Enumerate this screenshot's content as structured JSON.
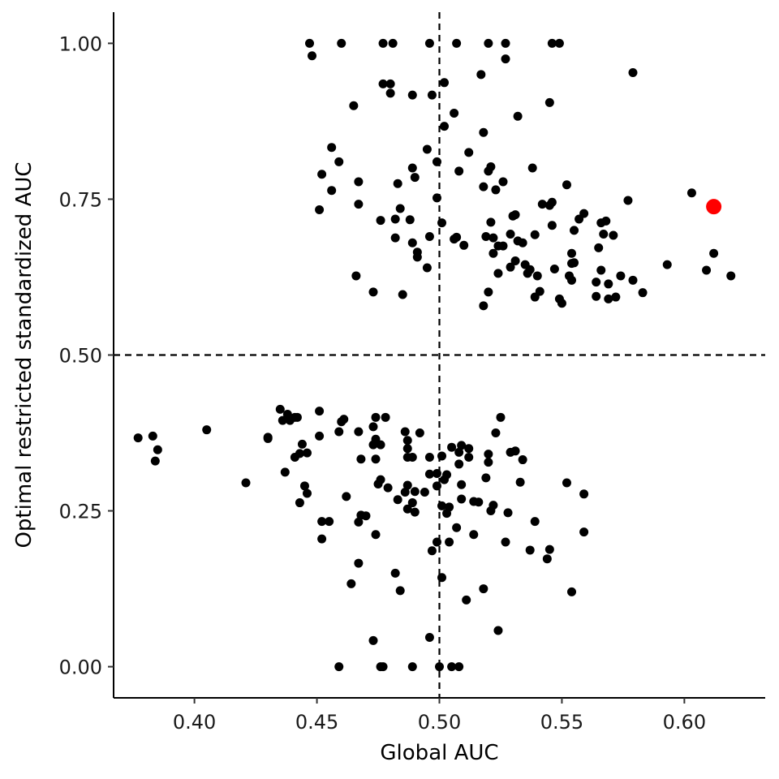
{
  "chart_data": {
    "type": "scatter",
    "xlabel": "Global AUC",
    "ylabel": "Optimal restricted standardized AUC",
    "xlim": [
      0.367,
      0.633
    ],
    "ylim": [
      -0.05,
      1.05
    ],
    "x_ticks": [
      0.4,
      0.45,
      0.5,
      0.55,
      0.6
    ],
    "x_tick_labels": [
      "0.40",
      "0.45",
      "0.50",
      "0.55",
      "0.60"
    ],
    "y_ticks": [
      0.0,
      0.25,
      0.5,
      0.75,
      1.0
    ],
    "y_tick_labels": [
      "0.00",
      "0.25",
      "0.50",
      "0.75",
      "1.00"
    ],
    "reference_lines": [
      {
        "orientation": "horizontal",
        "value": 0.5,
        "style": "dashed"
      },
      {
        "orientation": "vertical",
        "value": 0.5,
        "style": "dashed"
      }
    ],
    "grid": false,
    "legend": "none",
    "colors": {
      "points": "#000000",
      "highlight": "#ff0000",
      "reference": "#000000"
    },
    "highlight": {
      "x": 0.612,
      "y": 0.738
    },
    "points": [
      [
        0.447,
        1.0
      ],
      [
        0.46,
        1.0
      ],
      [
        0.477,
        1.0
      ],
      [
        0.481,
        1.0
      ],
      [
        0.496,
        1.0
      ],
      [
        0.507,
        1.0
      ],
      [
        0.52,
        1.0
      ],
      [
        0.527,
        1.0
      ],
      [
        0.546,
        1.0
      ],
      [
        0.549,
        1.0
      ],
      [
        0.448,
        0.98
      ],
      [
        0.527,
        0.975
      ],
      [
        0.579,
        0.953
      ],
      [
        0.517,
        0.95
      ],
      [
        0.477,
        0.935
      ],
      [
        0.48,
        0.935
      ],
      [
        0.502,
        0.937
      ],
      [
        0.48,
        0.92
      ],
      [
        0.489,
        0.917
      ],
      [
        0.497,
        0.917
      ],
      [
        0.545,
        0.905
      ],
      [
        0.465,
        0.9
      ],
      [
        0.532,
        0.883
      ],
      [
        0.506,
        0.888
      ],
      [
        0.502,
        0.867
      ],
      [
        0.518,
        0.857
      ],
      [
        0.456,
        0.833
      ],
      [
        0.495,
        0.83
      ],
      [
        0.512,
        0.825
      ],
      [
        0.459,
        0.81
      ],
      [
        0.499,
        0.81
      ],
      [
        0.452,
        0.79
      ],
      [
        0.489,
        0.8
      ],
      [
        0.508,
        0.795
      ],
      [
        0.52,
        0.795
      ],
      [
        0.521,
        0.802
      ],
      [
        0.538,
        0.8
      ],
      [
        0.467,
        0.778
      ],
      [
        0.49,
        0.785
      ],
      [
        0.483,
        0.775
      ],
      [
        0.518,
        0.77
      ],
      [
        0.526,
        0.778
      ],
      [
        0.523,
        0.765
      ],
      [
        0.456,
        0.764
      ],
      [
        0.552,
        0.773
      ],
      [
        0.577,
        0.748
      ],
      [
        0.603,
        0.76
      ],
      [
        0.499,
        0.752
      ],
      [
        0.467,
        0.742
      ],
      [
        0.484,
        0.735
      ],
      [
        0.451,
        0.733
      ],
      [
        0.545,
        0.74
      ],
      [
        0.546,
        0.745
      ],
      [
        0.542,
        0.742
      ],
      [
        0.53,
        0.723
      ],
      [
        0.531,
        0.725
      ],
      [
        0.559,
        0.727
      ],
      [
        0.557,
        0.718
      ],
      [
        0.566,
        0.712
      ],
      [
        0.568,
        0.715
      ],
      [
        0.521,
        0.713
      ],
      [
        0.501,
        0.712
      ],
      [
        0.488,
        0.717
      ],
      [
        0.482,
        0.718
      ],
      [
        0.476,
        0.716
      ],
      [
        0.546,
        0.708
      ],
      [
        0.555,
        0.7
      ],
      [
        0.567,
        0.694
      ],
      [
        0.571,
        0.692
      ],
      [
        0.539,
        0.693
      ],
      [
        0.529,
        0.694
      ],
      [
        0.519,
        0.69
      ],
      [
        0.522,
        0.688
      ],
      [
        0.507,
        0.689
      ],
      [
        0.506,
        0.686
      ],
      [
        0.496,
        0.69
      ],
      [
        0.482,
        0.688
      ],
      [
        0.489,
        0.68
      ],
      [
        0.51,
        0.676
      ],
      [
        0.524,
        0.675
      ],
      [
        0.526,
        0.675
      ],
      [
        0.532,
        0.683
      ],
      [
        0.534,
        0.68
      ],
      [
        0.565,
        0.672
      ],
      [
        0.554,
        0.663
      ],
      [
        0.522,
        0.663
      ],
      [
        0.491,
        0.665
      ],
      [
        0.491,
        0.657
      ],
      [
        0.612,
        0.663
      ],
      [
        0.531,
        0.651
      ],
      [
        0.555,
        0.648
      ],
      [
        0.554,
        0.647
      ],
      [
        0.535,
        0.645
      ],
      [
        0.529,
        0.641
      ],
      [
        0.537,
        0.637
      ],
      [
        0.547,
        0.638
      ],
      [
        0.566,
        0.636
      ],
      [
        0.593,
        0.645
      ],
      [
        0.609,
        0.636
      ],
      [
        0.495,
        0.64
      ],
      [
        0.536,
        0.631
      ],
      [
        0.54,
        0.627
      ],
      [
        0.524,
        0.631
      ],
      [
        0.553,
        0.627
      ],
      [
        0.554,
        0.62
      ],
      [
        0.574,
        0.627
      ],
      [
        0.579,
        0.62
      ],
      [
        0.619,
        0.627
      ],
      [
        0.466,
        0.627
      ],
      [
        0.564,
        0.617
      ],
      [
        0.569,
        0.614
      ],
      [
        0.52,
        0.601
      ],
      [
        0.541,
        0.602
      ],
      [
        0.583,
        0.6
      ],
      [
        0.473,
        0.601
      ],
      [
        0.485,
        0.597
      ],
      [
        0.564,
        0.594
      ],
      [
        0.569,
        0.59
      ],
      [
        0.572,
        0.593
      ],
      [
        0.539,
        0.593
      ],
      [
        0.549,
        0.59
      ],
      [
        0.55,
        0.583
      ],
      [
        0.518,
        0.579
      ],
      [
        0.435,
        0.413
      ],
      [
        0.451,
        0.41
      ],
      [
        0.438,
        0.405
      ],
      [
        0.441,
        0.4
      ],
      [
        0.436,
        0.395
      ],
      [
        0.439,
        0.395
      ],
      [
        0.442,
        0.4
      ],
      [
        0.461,
        0.397
      ],
      [
        0.46,
        0.393
      ],
      [
        0.474,
        0.4
      ],
      [
        0.478,
        0.4
      ],
      [
        0.525,
        0.4
      ],
      [
        0.473,
        0.385
      ],
      [
        0.405,
        0.38
      ],
      [
        0.459,
        0.377
      ],
      [
        0.467,
        0.377
      ],
      [
        0.486,
        0.377
      ],
      [
        0.492,
        0.375
      ],
      [
        0.523,
        0.375
      ],
      [
        0.377,
        0.367
      ],
      [
        0.383,
        0.37
      ],
      [
        0.43,
        0.368
      ],
      [
        0.43,
        0.366
      ],
      [
        0.451,
        0.37
      ],
      [
        0.474,
        0.365
      ],
      [
        0.487,
        0.363
      ],
      [
        0.473,
        0.356
      ],
      [
        0.476,
        0.356
      ],
      [
        0.444,
        0.357
      ],
      [
        0.505,
        0.352
      ],
      [
        0.509,
        0.355
      ],
      [
        0.512,
        0.35
      ],
      [
        0.487,
        0.35
      ],
      [
        0.385,
        0.348
      ],
      [
        0.446,
        0.343
      ],
      [
        0.443,
        0.342
      ],
      [
        0.441,
        0.336
      ],
      [
        0.508,
        0.344
      ],
      [
        0.529,
        0.344
      ],
      [
        0.531,
        0.346
      ],
      [
        0.52,
        0.341
      ],
      [
        0.512,
        0.336
      ],
      [
        0.496,
        0.336
      ],
      [
        0.501,
        0.338
      ],
      [
        0.534,
        0.332
      ],
      [
        0.468,
        0.333
      ],
      [
        0.474,
        0.333
      ],
      [
        0.487,
        0.336
      ],
      [
        0.489,
        0.336
      ],
      [
        0.508,
        0.325
      ],
      [
        0.52,
        0.328
      ],
      [
        0.384,
        0.33
      ],
      [
        0.437,
        0.312
      ],
      [
        0.496,
        0.309
      ],
      [
        0.503,
        0.308
      ],
      [
        0.499,
        0.31
      ],
      [
        0.502,
        0.3
      ],
      [
        0.519,
        0.303
      ],
      [
        0.476,
        0.3
      ],
      [
        0.475,
        0.293
      ],
      [
        0.479,
        0.287
      ],
      [
        0.487,
        0.291
      ],
      [
        0.499,
        0.29
      ],
      [
        0.509,
        0.292
      ],
      [
        0.421,
        0.295
      ],
      [
        0.445,
        0.29
      ],
      [
        0.446,
        0.278
      ],
      [
        0.533,
        0.296
      ],
      [
        0.552,
        0.295
      ],
      [
        0.559,
        0.277
      ],
      [
        0.486,
        0.28
      ],
      [
        0.49,
        0.281
      ],
      [
        0.494,
        0.28
      ],
      [
        0.462,
        0.273
      ],
      [
        0.483,
        0.268
      ],
      [
        0.509,
        0.269
      ],
      [
        0.514,
        0.265
      ],
      [
        0.516,
        0.264
      ],
      [
        0.489,
        0.263
      ],
      [
        0.443,
        0.263
      ],
      [
        0.487,
        0.253
      ],
      [
        0.501,
        0.258
      ],
      [
        0.504,
        0.256
      ],
      [
        0.522,
        0.259
      ],
      [
        0.521,
        0.25
      ],
      [
        0.528,
        0.247
      ],
      [
        0.49,
        0.248
      ],
      [
        0.503,
        0.246
      ],
      [
        0.468,
        0.243
      ],
      [
        0.47,
        0.242
      ],
      [
        0.467,
        0.232
      ],
      [
        0.452,
        0.233
      ],
      [
        0.455,
        0.233
      ],
      [
        0.539,
        0.233
      ],
      [
        0.507,
        0.223
      ],
      [
        0.559,
        0.216
      ],
      [
        0.514,
        0.212
      ],
      [
        0.474,
        0.212
      ],
      [
        0.452,
        0.205
      ],
      [
        0.504,
        0.2
      ],
      [
        0.499,
        0.2
      ],
      [
        0.527,
        0.2
      ],
      [
        0.497,
        0.186
      ],
      [
        0.537,
        0.187
      ],
      [
        0.545,
        0.188
      ],
      [
        0.544,
        0.173
      ],
      [
        0.467,
        0.166
      ],
      [
        0.482,
        0.15
      ],
      [
        0.501,
        0.143
      ],
      [
        0.464,
        0.133
      ],
      [
        0.484,
        0.122
      ],
      [
        0.518,
        0.125
      ],
      [
        0.554,
        0.12
      ],
      [
        0.511,
        0.107
      ],
      [
        0.524,
        0.058
      ],
      [
        0.496,
        0.047
      ],
      [
        0.473,
        0.042
      ],
      [
        0.459,
        0.0
      ],
      [
        0.476,
        0.0
      ],
      [
        0.477,
        0.0
      ],
      [
        0.489,
        0.0
      ],
      [
        0.5,
        0.0
      ],
      [
        0.505,
        0.0
      ],
      [
        0.508,
        0.0
      ]
    ]
  }
}
